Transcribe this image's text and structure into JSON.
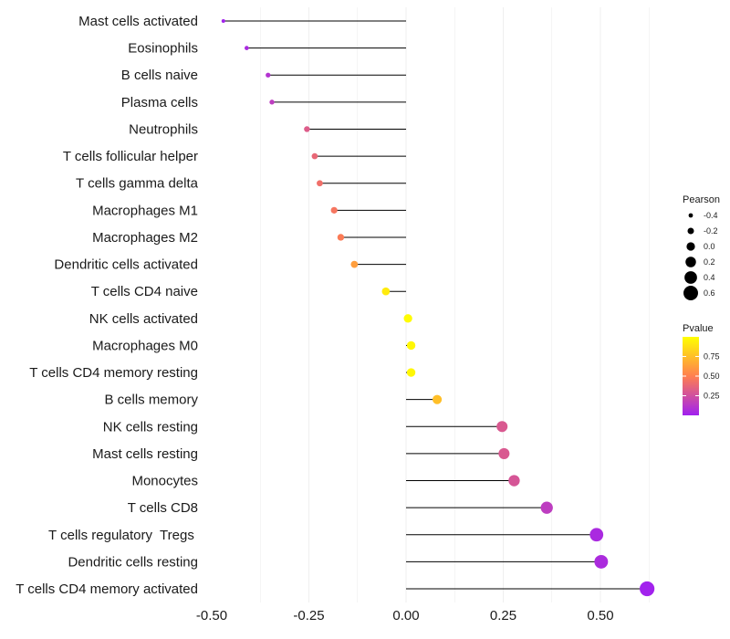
{
  "chart_data": {
    "type": "lollipop",
    "title": "",
    "xlabel": "",
    "ylabel": "",
    "xlim": [
      -0.5,
      0.65
    ],
    "x_ticks": [
      -0.5,
      -0.25,
      0.0,
      0.25,
      0.5
    ],
    "x_tick_labels": [
      "-0.50",
      "-0.25",
      "0.00",
      "0.25",
      "0.50"
    ],
    "categories": [
      "Mast cells activated",
      "Eosinophils",
      "B cells naive",
      "Plasma cells",
      "Neutrophils",
      "T cells follicular helper",
      "T cells gamma delta",
      "Macrophages M1",
      "Macrophages M2",
      "Dendritic cells activated",
      "T cells CD4 naive",
      "NK cells activated",
      "Macrophages M0",
      "T cells CD4 memory resting",
      "B cells memory",
      "NK cells resting",
      "Mast cells resting",
      "Monocytes",
      "T cells CD8",
      "T cells regulatory  Tregs ",
      "Dendritic cells resting",
      "T cells CD4 memory activated"
    ],
    "pearson": [
      -0.47,
      -0.41,
      -0.355,
      -0.345,
      -0.255,
      -0.235,
      -0.222,
      -0.185,
      -0.168,
      -0.133,
      -0.052,
      0.005,
      0.013,
      0.013,
      0.08,
      0.247,
      0.252,
      0.278,
      0.362,
      0.49,
      0.502,
      0.62
    ],
    "pvalue": [
      0.01,
      0.05,
      0.1,
      0.15,
      0.32,
      0.38,
      0.42,
      0.45,
      0.48,
      0.62,
      0.92,
      0.99,
      0.97,
      0.97,
      0.75,
      0.3,
      0.3,
      0.28,
      0.15,
      0.05,
      0.06,
      0.01
    ],
    "size_legend": {
      "title": "Pearson",
      "values": [
        -0.4,
        -0.2,
        0.0,
        0.2,
        0.4,
        0.6
      ],
      "labels": [
        "-0.4",
        "-0.2",
        "0.0",
        "0.2",
        "0.4",
        "0.6"
      ]
    },
    "color_legend": {
      "title": "Pvalue",
      "range": [
        0.0,
        1.0
      ],
      "ticks": [
        0.25,
        0.5,
        0.75
      ],
      "tick_labels": [
        "0.25",
        "0.50",
        "0.75"
      ],
      "colors": [
        "#a020f0",
        "#ff7f50",
        "#ffff00"
      ]
    },
    "grid": true
  }
}
